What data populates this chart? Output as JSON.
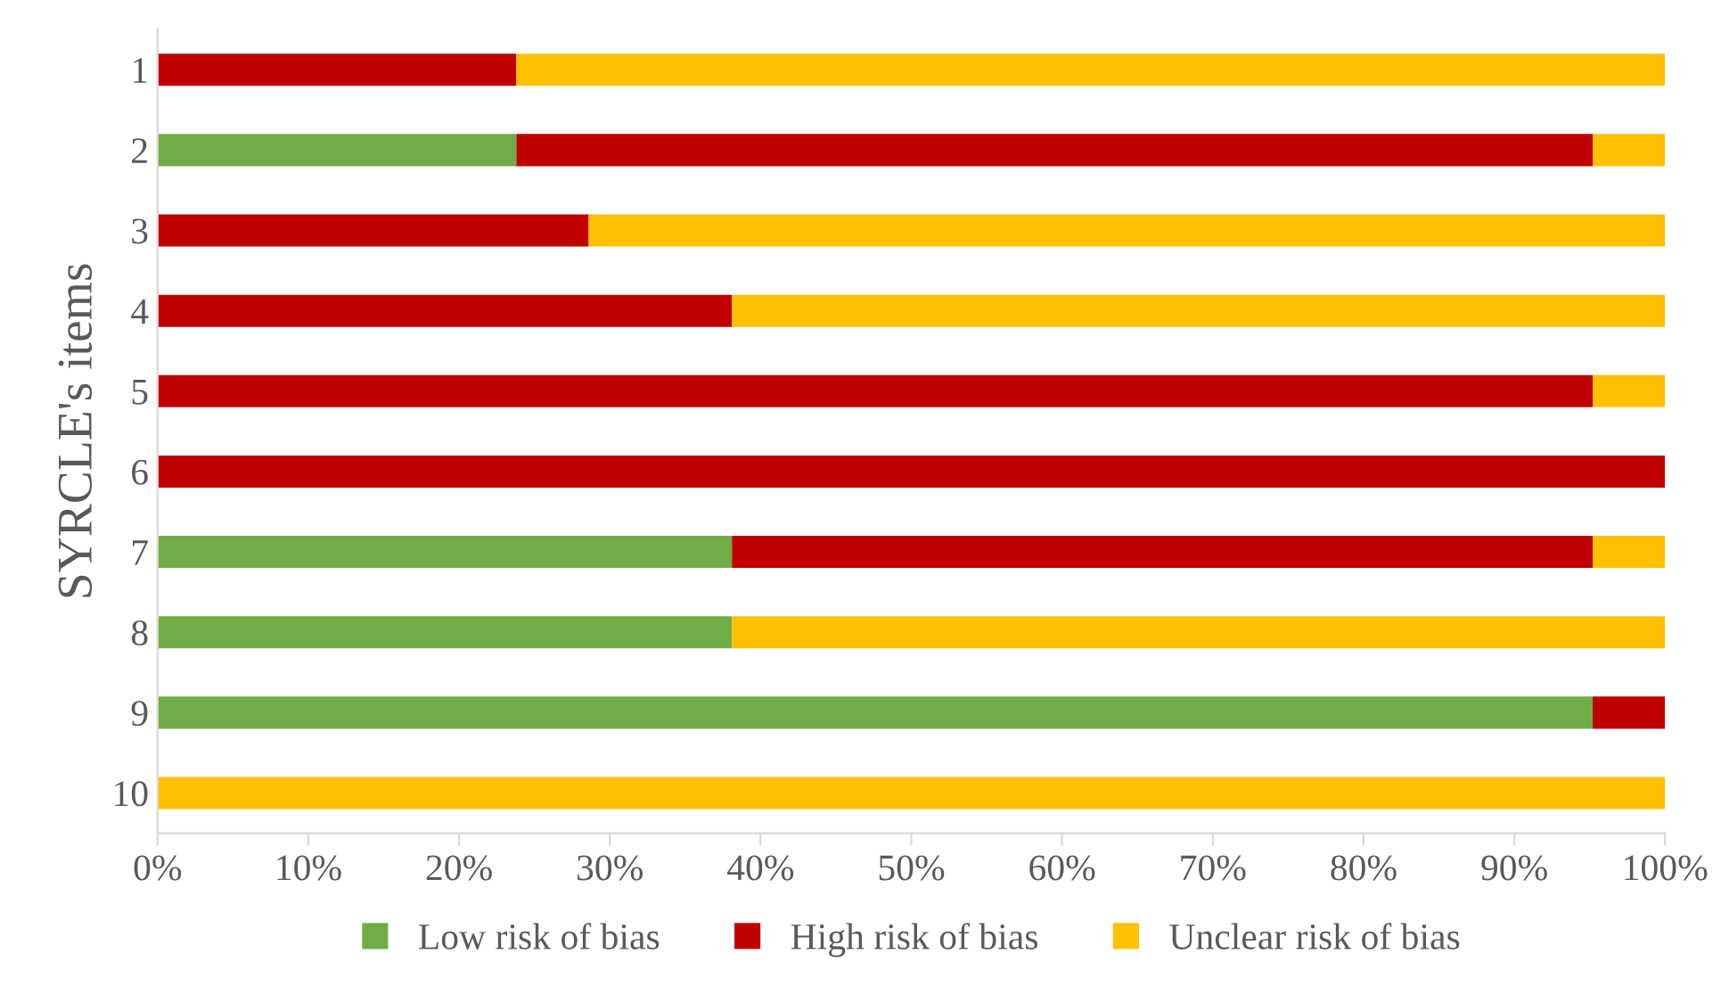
{
  "chart_data": {
    "type": "bar",
    "orientation": "horizontal",
    "stacked": true,
    "ylabel": "SYRCLE's items",
    "categories": [
      "1",
      "2",
      "3",
      "4",
      "5",
      "6",
      "7",
      "8",
      "9",
      "10"
    ],
    "series": [
      {
        "name": "Low risk of bias",
        "color": "#70ad47",
        "values": [
          0,
          23.8,
          0,
          0,
          0,
          0,
          38.1,
          38.1,
          95.2,
          0
        ]
      },
      {
        "name": "High risk of bias",
        "color": "#c00000",
        "values": [
          23.8,
          71.4,
          28.6,
          38.1,
          95.2,
          100,
          57.1,
          0,
          4.8,
          0
        ]
      },
      {
        "name": "Unclear risk of bias",
        "color": "#ffc000",
        "values": [
          76.2,
          4.8,
          71.4,
          61.9,
          4.8,
          0,
          4.8,
          61.9,
          0,
          100
        ]
      }
    ],
    "xlim": [
      0,
      100
    ],
    "xticks": [
      {
        "value": 0,
        "label": "0%"
      },
      {
        "value": 10,
        "label": "10%"
      },
      {
        "value": 20,
        "label": "20%"
      },
      {
        "value": 30,
        "label": "30%"
      },
      {
        "value": 40,
        "label": "40%"
      },
      {
        "value": 50,
        "label": "50%"
      },
      {
        "value": 60,
        "label": "60%"
      },
      {
        "value": 70,
        "label": "70%"
      },
      {
        "value": 80,
        "label": "80%"
      },
      {
        "value": 90,
        "label": "90%"
      },
      {
        "value": 100,
        "label": "100%"
      }
    ],
    "grid": false,
    "legend": "bottom"
  }
}
